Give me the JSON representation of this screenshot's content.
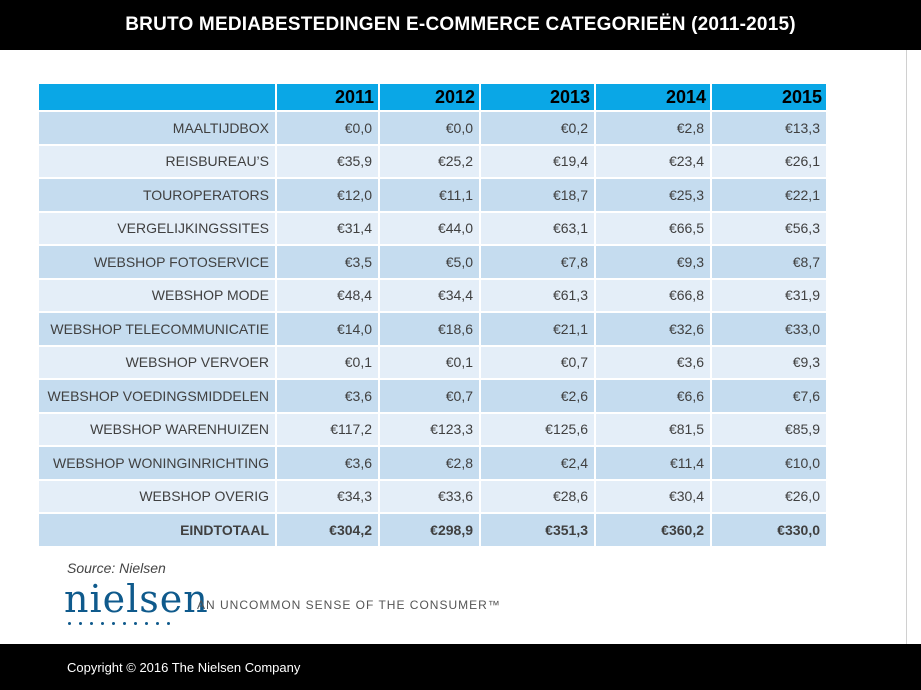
{
  "header": {
    "title": "BRUTO MEDIABESTEDINGEN E-COMMERCE CATEGORIEËN (2011-2015)"
  },
  "table": {
    "columns": [
      "",
      "2011",
      "2012",
      "2013",
      "2014",
      "2015"
    ],
    "rows": [
      {
        "category": "MAALTIJDBOX",
        "values": [
          "€0,0",
          "€0,0",
          "€0,2",
          "€2,8",
          "€13,3"
        ]
      },
      {
        "category": "REISBUREAU’S",
        "values": [
          "€35,9",
          "€25,2",
          "€19,4",
          "€23,4",
          "€26,1"
        ]
      },
      {
        "category": "TOUROPERATORS",
        "values": [
          "€12,0",
          "€11,1",
          "€18,7",
          "€25,3",
          "€22,1"
        ]
      },
      {
        "category": "VERGELIJKINGSSITES",
        "values": [
          "€31,4",
          "€44,0",
          "€63,1",
          "€66,5",
          "€56,3"
        ]
      },
      {
        "category": "WEBSHOP FOTOSERVICE",
        "values": [
          "€3,5",
          "€5,0",
          "€7,8",
          "€9,3",
          "€8,7"
        ]
      },
      {
        "category": "WEBSHOP MODE",
        "values": [
          "€48,4",
          "€34,4",
          "€61,3",
          "€66,8",
          "€31,9"
        ]
      },
      {
        "category": "WEBSHOP TELECOMMUNICATIE",
        "values": [
          "€14,0",
          "€18,6",
          "€21,1",
          "€32,6",
          "€33,0"
        ]
      },
      {
        "category": "WEBSHOP VERVOER",
        "values": [
          "€0,1",
          "€0,1",
          "€0,7",
          "€3,6",
          "€9,3"
        ]
      },
      {
        "category": "WEBSHOP VOEDINGSMIDDELEN",
        "values": [
          "€3,6",
          "€0,7",
          "€2,6",
          "€6,6",
          "€7,6"
        ]
      },
      {
        "category": "WEBSHOP WARENHUIZEN",
        "values": [
          "€117,2",
          "€123,3",
          "€125,6",
          "€81,5",
          "€85,9"
        ]
      },
      {
        "category": "WEBSHOP WONINGINRICHTING",
        "values": [
          "€3,6",
          "€2,8",
          "€2,4",
          "€11,4",
          "€10,0"
        ]
      },
      {
        "category": "WEBSHOP OVERIG",
        "values": [
          "€34,3",
          "€33,6",
          "€28,6",
          "€30,4",
          "€26,0"
        ]
      },
      {
        "category": "EINDTOTAAL",
        "values": [
          "€304,2",
          "€298,9",
          "€351,3",
          "€360,2",
          "€330,0"
        ]
      }
    ]
  },
  "source": "Source: Nielsen",
  "logo": {
    "word": "nielsen",
    "tagline": "AN UNCOMMON SENSE OF THE CONSUMER™"
  },
  "footer": {
    "copyright": "Copyright © 2016 The Nielsen Company"
  },
  "colors": {
    "header_bg": "#0aa7e6",
    "row_dark": "#c5dcef",
    "row_light": "#e4eef8",
    "bar": "#000000",
    "logo": "#0f5a8c"
  }
}
